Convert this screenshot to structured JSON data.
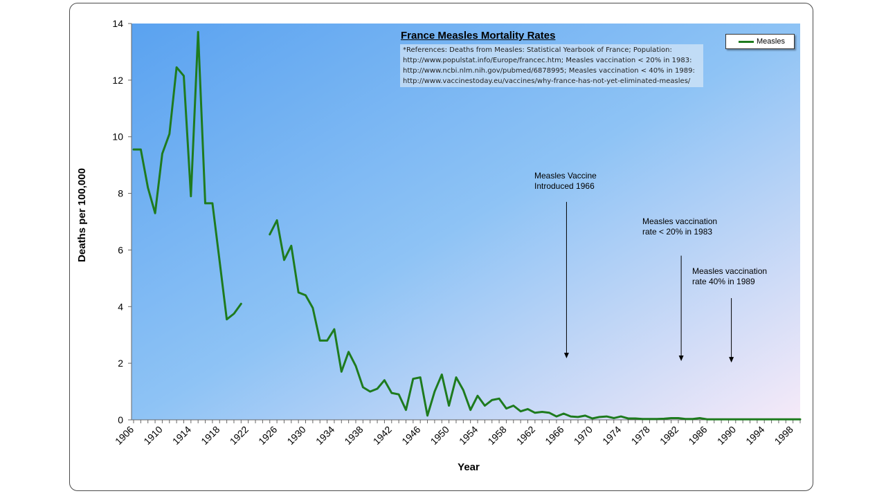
{
  "chart_data": {
    "type": "line",
    "title": "France Measles Mortality Rates",
    "references": [
      "*References: Deaths from Measles: Statistical Yearbook of France; Population:",
      "http://www.populstat.info/Europe/francec.htm; Measles vaccination < 20% in 1983:",
      "http://www.ncbi.nlm.nih.gov/pubmed/6878995; Measles vaccination < 40% in 1989:",
      "http://www.vaccinestoday.eu/vaccines/why-france-has-not-yet-eliminated-measles/"
    ],
    "xlabel": "Year",
    "ylabel": "Deaths per 100,000",
    "xlim": [
      1906,
      1999
    ],
    "ylim": [
      0,
      14
    ],
    "y_ticks": [
      0,
      2,
      4,
      6,
      8,
      10,
      12,
      14
    ],
    "x_ticks": [
      1906,
      1910,
      1914,
      1918,
      1922,
      1926,
      1930,
      1934,
      1938,
      1942,
      1946,
      1950,
      1954,
      1958,
      1962,
      1966,
      1970,
      1974,
      1978,
      1982,
      1986,
      1990,
      1994,
      1998
    ],
    "legend": {
      "position": "top-right",
      "entries": [
        "Measles"
      ]
    },
    "colors": {
      "series": "#1e7b1e",
      "bg_left": "#5aa2f0",
      "bg_mid": "#88c0f7",
      "bg_right": "#f6eaf6"
    },
    "grid": false,
    "series": [
      {
        "name": "Measles",
        "segments": [
          [
            [
              1906,
              9.55
            ],
            [
              1907,
              9.55
            ],
            [
              1908,
              8.2
            ],
            [
              1909,
              7.3
            ],
            [
              1910,
              9.4
            ],
            [
              1911,
              10.1
            ],
            [
              1912,
              12.45
            ],
            [
              1913,
              12.15
            ],
            [
              1914,
              7.9
            ],
            [
              1915,
              13.7
            ],
            [
              1916,
              7.65
            ],
            [
              1917,
              7.65
            ],
            [
              1918,
              5.6
            ],
            [
              1919,
              3.55
            ],
            [
              1920,
              3.75
            ],
            [
              1921,
              4.1
            ]
          ],
          [
            [
              1925,
              6.55
            ],
            [
              1926,
              7.05
            ],
            [
              1927,
              5.65
            ],
            [
              1928,
              6.15
            ],
            [
              1929,
              4.5
            ],
            [
              1930,
              4.4
            ],
            [
              1931,
              3.95
            ],
            [
              1932,
              2.8
            ],
            [
              1933,
              2.8
            ],
            [
              1934,
              3.2
            ],
            [
              1935,
              1.7
            ],
            [
              1936,
              2.4
            ],
            [
              1937,
              1.9
            ],
            [
              1938,
              1.15
            ],
            [
              1939,
              1.0
            ],
            [
              1940,
              1.1
            ],
            [
              1941,
              1.4
            ],
            [
              1942,
              0.95
            ],
            [
              1943,
              0.9
            ],
            [
              1944,
              0.35
            ],
            [
              1945,
              1.45
            ],
            [
              1946,
              1.5
            ],
            [
              1947,
              0.15
            ],
            [
              1948,
              1.0
            ],
            [
              1949,
              1.6
            ],
            [
              1950,
              0.5
            ],
            [
              1951,
              1.5
            ],
            [
              1952,
              1.05
            ],
            [
              1953,
              0.35
            ],
            [
              1954,
              0.85
            ],
            [
              1955,
              0.5
            ],
            [
              1956,
              0.7
            ],
            [
              1957,
              0.75
            ],
            [
              1958,
              0.4
            ],
            [
              1959,
              0.5
            ],
            [
              1960,
              0.3
            ],
            [
              1961,
              0.38
            ],
            [
              1962,
              0.25
            ],
            [
              1963,
              0.28
            ],
            [
              1964,
              0.25
            ],
            [
              1965,
              0.12
            ],
            [
              1966,
              0.22
            ],
            [
              1967,
              0.12
            ],
            [
              1968,
              0.1
            ],
            [
              1969,
              0.15
            ],
            [
              1970,
              0.05
            ],
            [
              1971,
              0.1
            ],
            [
              1972,
              0.12
            ],
            [
              1973,
              0.06
            ],
            [
              1974,
              0.12
            ],
            [
              1975,
              0.05
            ],
            [
              1976,
              0.05
            ],
            [
              1977,
              0.03
            ],
            [
              1978,
              0.03
            ],
            [
              1979,
              0.03
            ],
            [
              1980,
              0.04
            ],
            [
              1981,
              0.06
            ],
            [
              1982,
              0.06
            ],
            [
              1983,
              0.03
            ],
            [
              1984,
              0.03
            ],
            [
              1985,
              0.06
            ],
            [
              1986,
              0.02
            ],
            [
              1987,
              0.02
            ],
            [
              1988,
              0.02
            ],
            [
              1989,
              0.02
            ],
            [
              1990,
              0.02
            ],
            [
              1991,
              0.02
            ],
            [
              1992,
              0.02
            ],
            [
              1993,
              0.02
            ],
            [
              1994,
              0.02
            ],
            [
              1995,
              0.02
            ],
            [
              1996,
              0.02
            ],
            [
              1997,
              0.02
            ],
            [
              1998,
              0.02
            ],
            [
              1999,
              0.02
            ]
          ]
        ]
      }
    ],
    "annotations": [
      {
        "lines": [
          "Measles Vaccine",
          "Introduced 1966"
        ],
        "arrow_x": 1966.4,
        "arrow_from_y": 7.7,
        "arrow_to_y": 2.2
      },
      {
        "lines": [
          "Measles vaccination",
          "rate < 20% in 1983"
        ],
        "arrow_x": 1982.4,
        "arrow_from_y": 5.8,
        "arrow_to_y": 2.1
      },
      {
        "lines": [
          "Measles vaccination",
          "rate 40% in 1989"
        ],
        "arrow_x": 1989.4,
        "arrow_from_y": 4.3,
        "arrow_to_y": 2.05
      }
    ]
  }
}
